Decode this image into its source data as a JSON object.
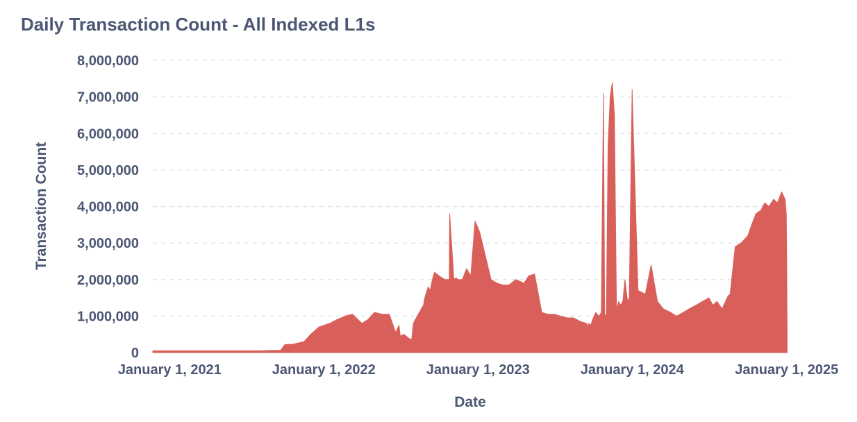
{
  "chart_data": {
    "type": "area",
    "title": "Daily Transaction Count - All Indexed L1s",
    "xlabel": "Date",
    "ylabel": "Transaction Count",
    "xlim": [
      "2020-11-22",
      "2025-01-03"
    ],
    "ylim": [
      0,
      8000000
    ],
    "grid": true,
    "series_color": "#d9605a",
    "x_ticks": [
      "January 1, 2021",
      "January 1, 2022",
      "January 1, 2023",
      "January 1, 2024",
      "January 1, 2025"
    ],
    "y_ticks": [
      "0",
      "1,000,000",
      "2,000,000",
      "3,000,000",
      "4,000,000",
      "5,000,000",
      "6,000,000",
      "7,000,000",
      "8,000,000"
    ],
    "x_tick_dates": [
      "2021-01-01",
      "2022-01-01",
      "2023-01-01",
      "2024-01-01",
      "2025-01-01"
    ],
    "y_tick_values": [
      0,
      1000000,
      2000000,
      3000000,
      4000000,
      5000000,
      6000000,
      7000000,
      8000000
    ],
    "series": [
      {
        "x": [
          "2020-11-22",
          "2021-02-01",
          "2021-05-01",
          "2021-08-01",
          "2021-09-01",
          "2021-09-20",
          "2021-10-01",
          "2021-10-20",
          "2021-11-15",
          "2021-12-01",
          "2021-12-20",
          "2022-01-15",
          "2022-02-01",
          "2022-02-20",
          "2022-03-10",
          "2022-04-01",
          "2022-04-15",
          "2022-05-01",
          "2022-05-20",
          "2022-06-05",
          "2022-06-20",
          "2022-06-28",
          "2022-07-01",
          "2022-07-10",
          "2022-07-20",
          "2022-07-28",
          "2022-08-01",
          "2022-08-10",
          "2022-08-25",
          "2022-08-28",
          "2022-09-05",
          "2022-09-10",
          "2022-09-15",
          "2022-09-20",
          "2022-10-01",
          "2022-10-15",
          "2022-10-25",
          "2022-10-26",
          "2022-11-05",
          "2022-11-10",
          "2022-11-15",
          "2022-11-25",
          "2022-12-05",
          "2022-12-15",
          "2022-12-25",
          "2023-01-05",
          "2023-02-01",
          "2023-02-15",
          "2023-03-01",
          "2023-03-15",
          "2023-04-01",
          "2023-04-20",
          "2023-05-01",
          "2023-05-15",
          "2023-06-01",
          "2023-06-15",
          "2023-07-01",
          "2023-07-15",
          "2023-08-01",
          "2023-08-15",
          "2023-09-01",
          "2023-09-15",
          "2023-09-18",
          "2023-09-20",
          "2023-09-25",
          "2023-10-01",
          "2023-10-05",
          "2023-10-07",
          "2023-10-10",
          "2023-10-15",
          "2023-10-20",
          "2023-10-25",
          "2023-10-28",
          "2023-11-01",
          "2023-11-05",
          "2023-11-10",
          "2023-11-15",
          "2023-11-20",
          "2023-11-25",
          "2023-11-28",
          "2023-11-30",
          "2023-12-02",
          "2023-12-05",
          "2023-12-10",
          "2023-12-15",
          "2023-12-20",
          "2023-12-25",
          "2024-01-01",
          "2024-01-15",
          "2024-02-01",
          "2024-02-15",
          "2024-03-01",
          "2024-03-15",
          "2024-04-01",
          "2024-04-15",
          "2024-05-01",
          "2024-05-15",
          "2024-06-01",
          "2024-06-15",
          "2024-07-01",
          "2024-07-10",
          "2024-07-20",
          "2024-08-01",
          "2024-08-15",
          "2024-08-20",
          "2024-09-01",
          "2024-09-15",
          "2024-10-01",
          "2024-10-10",
          "2024-10-20",
          "2024-11-01",
          "2024-11-10",
          "2024-11-20",
          "2024-12-01",
          "2024-12-10",
          "2024-12-20",
          "2024-12-28",
          "2024-12-31",
          "2025-01-01",
          "2025-01-02"
        ],
        "values": [
          50000,
          50000,
          50000,
          50000,
          60000,
          60000,
          220000,
          230000,
          300000,
          500000,
          700000,
          800000,
          900000,
          1000000,
          1050000,
          800000,
          900000,
          1100000,
          1050000,
          1050000,
          550000,
          750000,
          450000,
          500000,
          400000,
          350000,
          800000,
          1000000,
          1300000,
          1500000,
          1800000,
          1700000,
          2000000,
          2200000,
          2100000,
          2000000,
          2000000,
          3800000,
          2000000,
          2050000,
          2000000,
          2000000,
          2300000,
          2100000,
          3600000,
          3300000,
          2000000,
          1900000,
          1850000,
          1850000,
          2000000,
          1900000,
          2100000,
          2150000,
          1100000,
          1050000,
          1050000,
          1000000,
          950000,
          950000,
          850000,
          800000,
          700000,
          800000,
          750000,
          950000,
          1050000,
          1100000,
          1050000,
          1000000,
          1100000,
          7100000,
          1050000,
          1000000,
          5700000,
          7000000,
          7400000,
          6500000,
          1200000,
          1300000,
          1400000,
          1350000,
          1300000,
          1400000,
          2000000,
          1500000,
          1400000,
          7200000,
          1700000,
          1600000,
          2400000,
          1400000,
          1200000,
          1100000,
          1000000,
          1100000,
          1200000,
          1300000,
          1400000,
          1500000,
          1300000,
          1400000,
          1200000,
          1550000,
          1600000,
          2900000,
          3000000,
          3200000,
          3500000,
          3800000,
          3900000,
          4100000,
          4000000,
          4200000,
          4100000,
          4400000,
          4200000,
          3800000,
          2500000,
          400000
        ]
      }
    ]
  }
}
